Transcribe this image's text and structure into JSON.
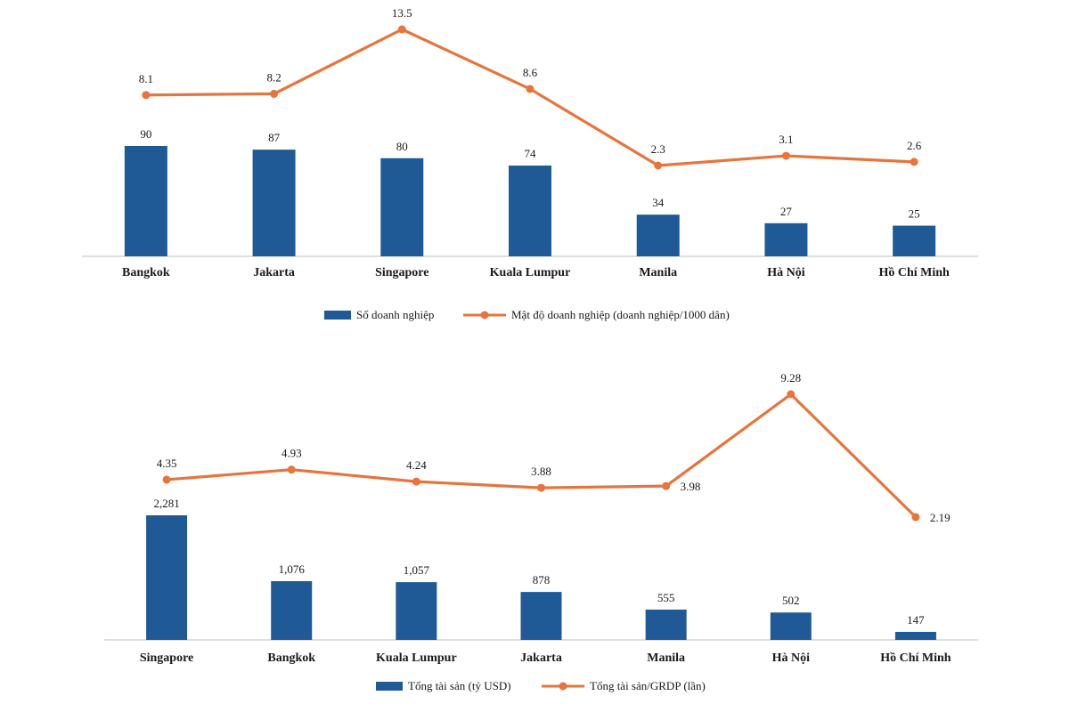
{
  "chart_data": [
    {
      "type": "bar",
      "categories": [
        "Bangkok",
        "Jakarta",
        "Singapore",
        "Kuala Lumpur",
        "Manila",
        "Hà Nội",
        "Hồ Chí Minh"
      ],
      "series": [
        {
          "name": "Số doanh nghiệp",
          "type": "bar",
          "color": "#1f5a96",
          "values": [
            90,
            87,
            80,
            74,
            34,
            27,
            25
          ],
          "labels": [
            "90",
            "87",
            "80",
            "74",
            "34",
            "27",
            "25"
          ]
        },
        {
          "name": "Mật độ doanh nghiệp  (doanh nghiệp/1000  dân)",
          "type": "line",
          "color": "#e8743b",
          "values": [
            8.1,
            8.2,
            13.5,
            8.6,
            2.3,
            3.1,
            2.6
          ],
          "labels": [
            "8.1",
            "8.2",
            "13.5",
            "8.6",
            "2.3",
            "3.1",
            "2.6"
          ]
        }
      ],
      "legend": "bottom"
    },
    {
      "type": "bar",
      "categories": [
        "Singapore",
        "Bangkok",
        "Kuala Lumpur",
        "Jakarta",
        "Manila",
        "Hà Nội",
        "Hồ Chí Minh"
      ],
      "series": [
        {
          "name": "Tổng tài sản (tỷ USD)",
          "type": "bar",
          "color": "#1f5a96",
          "values": [
            2281,
            1076,
            1057,
            878,
            555,
            502,
            147
          ],
          "labels": [
            "2,281",
            "1,076",
            "1,057",
            "878",
            "555",
            "502",
            "147"
          ]
        },
        {
          "name": "Tổng tài sản/GRDP (lần)",
          "type": "line",
          "color": "#e8743b",
          "values": [
            4.35,
            4.93,
            4.24,
            3.88,
            3.98,
            9.28,
            2.19
          ],
          "labels": [
            "4.35",
            "4.93",
            "4.24",
            "3.88",
            "3.98",
            "9.28",
            "2.19"
          ]
        }
      ],
      "legend": "bottom"
    }
  ]
}
